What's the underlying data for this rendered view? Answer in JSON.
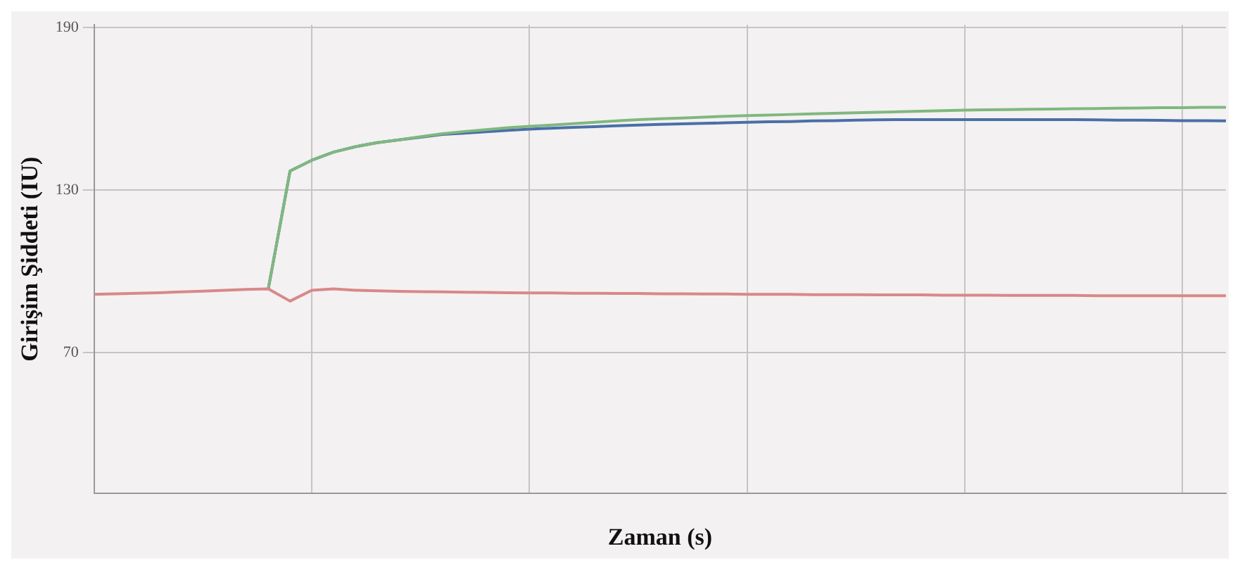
{
  "chart_data": {
    "type": "line",
    "xlabel": "Zaman (s)",
    "ylabel": "Girişim Şiddeti (IU)",
    "categories": [
      null,
      null,
      null,
      null,
      null,
      null,
      null,
      null,
      null,
      null,
      null,
      null,
      null,
      null,
      null,
      null,
      null,
      null,
      null,
      null,
      null,
      null,
      null,
      null,
      null,
      null,
      null,
      null,
      null,
      null,
      null,
      null,
      null,
      null,
      null,
      null,
      null,
      null,
      null,
      null,
      null,
      null,
      null,
      null,
      null,
      null,
      null,
      null,
      null,
      null,
      null,
      null,
      null
    ],
    "series": [
      {
        "color": "#d98888",
        "values": [
          91.5,
          91.7,
          91.9,
          92.1,
          92.4,
          92.7,
          93,
          93.3,
          93.5,
          89,
          93,
          93.5,
          93,
          92.8,
          92.6,
          92.5,
          92.4,
          92.3,
          92.2,
          92.1,
          92,
          92,
          91.9,
          91.9,
          91.8,
          91.8,
          91.7,
          91.7,
          91.6,
          91.6,
          91.5,
          91.5,
          91.5,
          91.4,
          91.4,
          91.4,
          91.3,
          91.3,
          91.3,
          91.2,
          91.2,
          91.2,
          91.1,
          91.1,
          91.1,
          91.1,
          91,
          91,
          91,
          91,
          91,
          91,
          91
        ]
      },
      {
        "color": "#7fb87f",
        "values": [
          null,
          null,
          null,
          null,
          null,
          null,
          null,
          null,
          93.5,
          137,
          141,
          144,
          146,
          147.5,
          148.5,
          149.7,
          150.8,
          151.6,
          152.3,
          153,
          153.5,
          154,
          154.5,
          155,
          155.5,
          156,
          156.3,
          156.6,
          156.9,
          157.2,
          157.5,
          157.7,
          157.9,
          158.1,
          158.3,
          158.5,
          158.7,
          158.9,
          159.1,
          159.3,
          159.5,
          159.6,
          159.7,
          159.8,
          159.9,
          160,
          160.1,
          160.2,
          160.3,
          160.4,
          160.4,
          160.5,
          160.5
        ]
      },
      {
        "color": "#4a6fa8",
        "values": [
          null,
          null,
          null,
          null,
          null,
          null,
          null,
          null,
          93.5,
          137,
          141,
          144,
          146,
          147.5,
          148.5,
          149.5,
          150.5,
          151,
          151.5,
          152,
          152.5,
          152.8,
          153.1,
          153.4,
          153.7,
          154,
          154.2,
          154.4,
          154.6,
          154.8,
          155,
          155.2,
          155.3,
          155.5,
          155.6,
          155.8,
          155.9,
          156,
          156,
          156,
          156,
          156,
          156,
          156,
          156,
          156,
          155.9,
          155.8,
          155.8,
          155.7,
          155.6,
          155.6,
          155.5
        ]
      }
    ],
    "ylim": [
      18,
      191
    ],
    "yticks": [
      70,
      130,
      190
    ],
    "grid": true,
    "legend": false,
    "marker": "none",
    "line_style": "solid"
  }
}
